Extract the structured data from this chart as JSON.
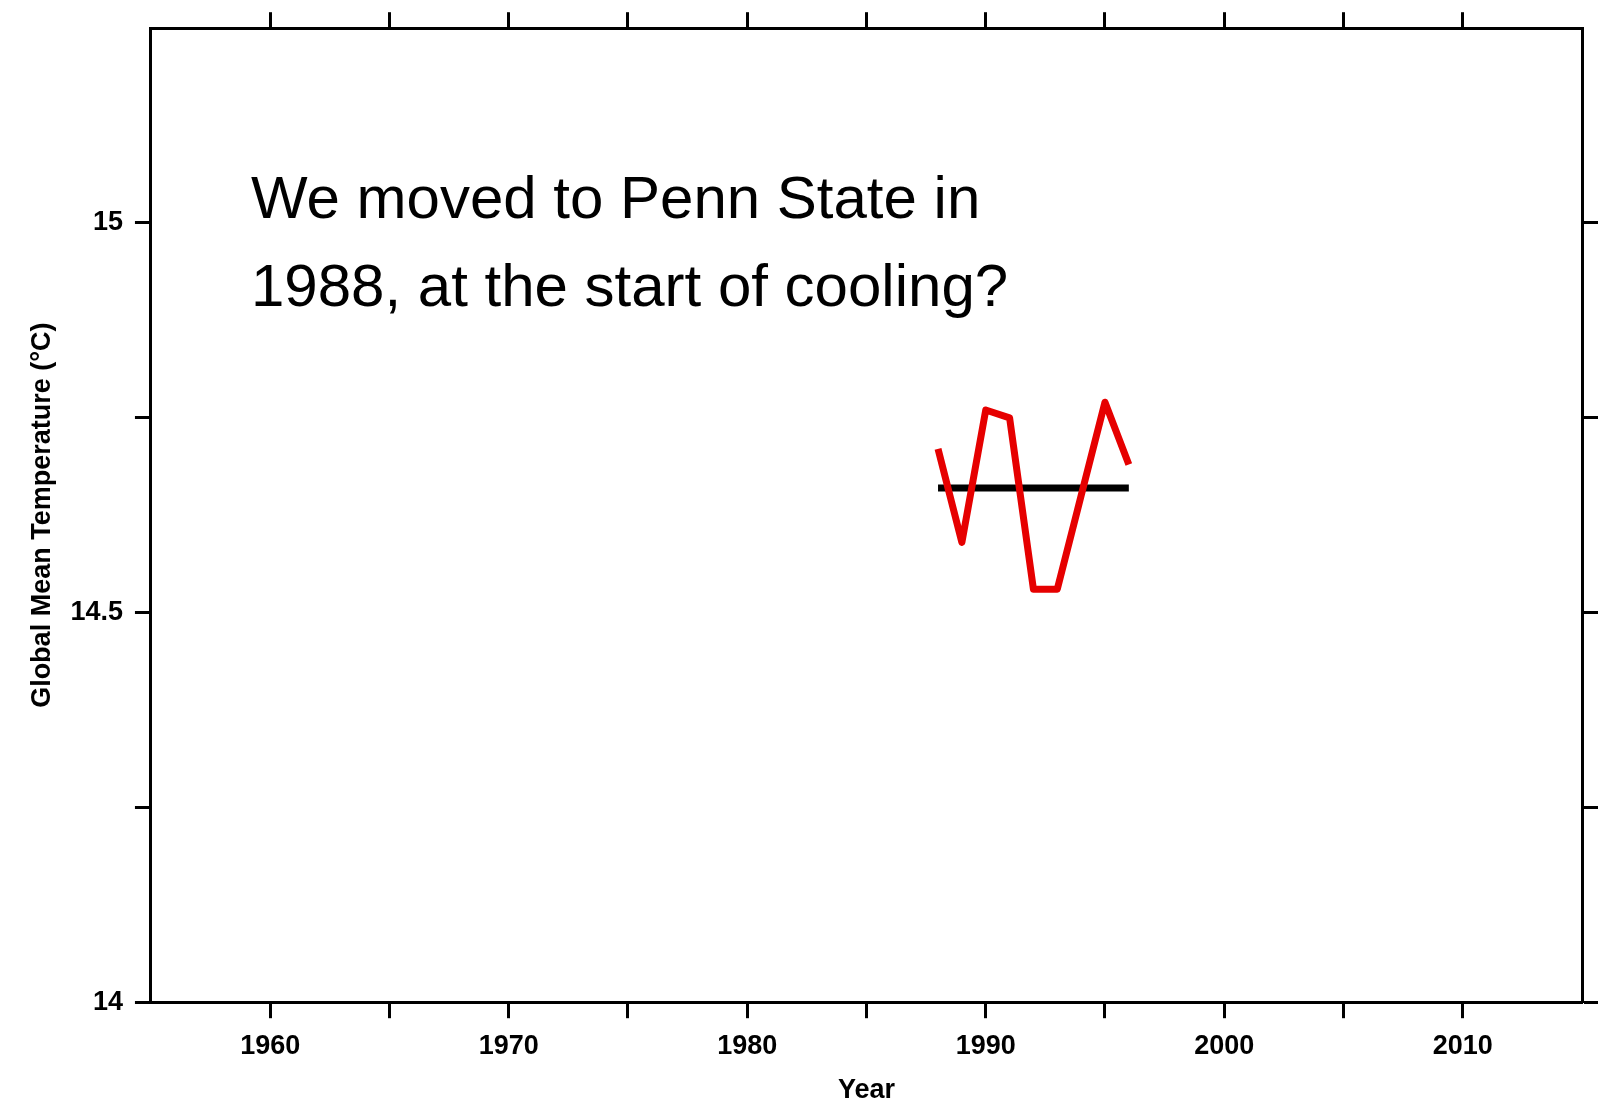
{
  "chart_data": {
    "type": "line",
    "xlabel": "Year",
    "ylabel": "Global Mean Temperature (°C)",
    "annotations": [
      "We moved to Penn State in\n1988, at the start of cooling?"
    ],
    "series": [
      {
        "color": "#e60000",
        "x": [
          1988,
          1989,
          1990,
          1991,
          1992,
          1993,
          1994,
          1995,
          1996
        ],
        "values": [
          14.71,
          14.59,
          14.76,
          14.75,
          14.53,
          14.53,
          14.65,
          14.77,
          14.69
        ]
      },
      {
        "color": "#000000",
        "x": [
          1988,
          1996
        ],
        "values": [
          14.66,
          14.66
        ]
      }
    ],
    "xlim": [
      1955,
      2015
    ],
    "xticks": [
      1960,
      {
        "value": 1965,
        "label": null
      },
      1970,
      {
        "value": 1975,
        "label": null
      },
      1980,
      {
        "value": 1985,
        "label": null
      },
      1990,
      {
        "value": 1995,
        "label": null
      },
      2000,
      {
        "value": 2005,
        "label": null
      },
      2010
    ],
    "ylim": [
      14,
      15.25
    ],
    "yticks": [
      14,
      {
        "value": 14.25,
        "label": null
      },
      14.5,
      {
        "value": 14.75,
        "label": null
      },
      15
    ],
    "grid": false,
    "legend": false,
    "marker": "none",
    "line_style": "solid"
  }
}
